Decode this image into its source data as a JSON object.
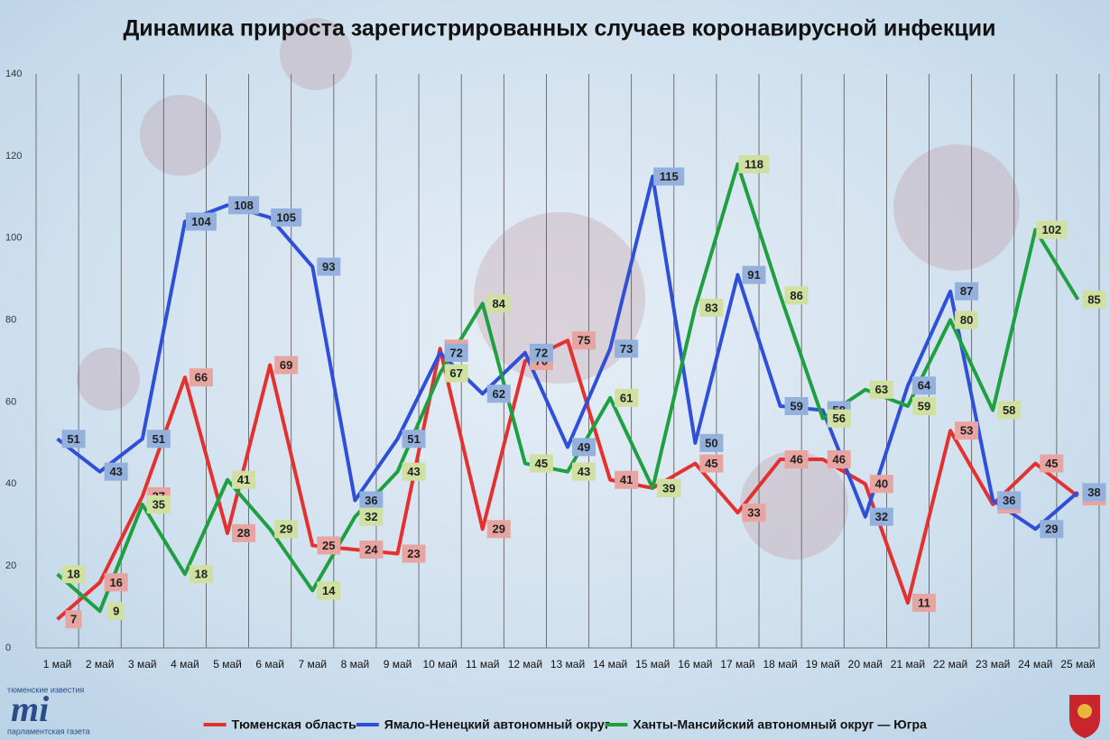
{
  "chart_data": {
    "type": "line",
    "title": "Динамика прироста зарегистрированных случаев коронавирусной инфекции",
    "categories": [
      "1 май",
      "2 май",
      "3 май",
      "4 май",
      "5 май",
      "6 май",
      "7 май",
      "8 май",
      "9 май",
      "10 май",
      "11 май",
      "12 май",
      "13 май",
      "14 май",
      "15 май",
      "16 май",
      "17 май",
      "18 май",
      "19 май",
      "20 май",
      "21 май",
      "22 май",
      "23 май",
      "24 май",
      "25 май"
    ],
    "series": [
      {
        "name": "Тюменская область",
        "color": "#e53030",
        "label_color": "#e8a4a0",
        "values": [
          7,
          16,
          37,
          66,
          28,
          69,
          25,
          24,
          23,
          73,
          29,
          70,
          75,
          41,
          39,
          45,
          33,
          46,
          46,
          40,
          11,
          53,
          35,
          45,
          37
        ]
      },
      {
        "name": "Ямало-Ненецкий автономный округ",
        "color": "#2f4fd8",
        "label_color": "#93b1dc",
        "values": [
          51,
          43,
          51,
          104,
          108,
          105,
          93,
          36,
          51,
          72,
          62,
          72,
          49,
          73,
          115,
          50,
          91,
          59,
          58,
          32,
          64,
          87,
          36,
          29,
          38
        ]
      },
      {
        "name": "Ханты-Мансийский автономный округ — Югра",
        "color": "#1fa040",
        "label_color": "#cfe0a0",
        "values": [
          18,
          9,
          35,
          18,
          41,
          29,
          14,
          32,
          43,
          67,
          84,
          45,
          43,
          61,
          39,
          83,
          118,
          86,
          56,
          63,
          59,
          80,
          58,
          102,
          85
        ]
      }
    ],
    "ylim": [
      0,
      140
    ],
    "yticks": [
      0,
      20,
      40,
      60,
      80,
      100,
      120,
      140
    ],
    "grid": true,
    "legend": "bottom",
    "logo": {
      "top": "тюменские известия",
      "bottom": "парламентская газета"
    }
  }
}
